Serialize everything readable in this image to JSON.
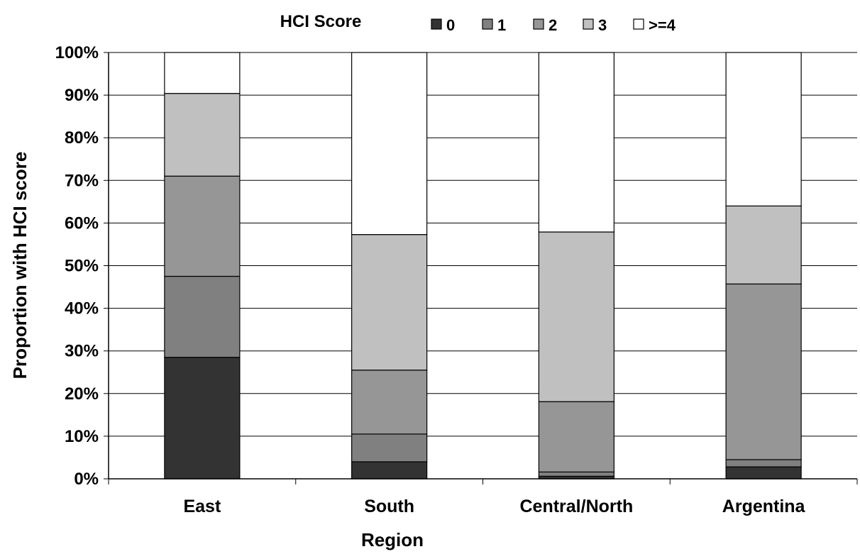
{
  "chart_data": {
    "type": "bar",
    "stacked": true,
    "normalized": true,
    "title": "",
    "legend_title": "HCI Score",
    "legend_position": "top",
    "xlabel": "Region",
    "ylabel": "Proportion with HCI score",
    "ylim": [
      0,
      100
    ],
    "y_ticks": [
      "0%",
      "10%",
      "20%",
      "30%",
      "40%",
      "50%",
      "60%",
      "70%",
      "80%",
      "90%",
      "100%"
    ],
    "gridlines": true,
    "categories": [
      "East",
      "South",
      "Central/North",
      "Argentina"
    ],
    "series": [
      {
        "name": "0",
        "color": "#333333",
        "values": [
          28.5,
          4.0,
          0.6,
          2.8
        ]
      },
      {
        "name": "1",
        "color": "#808080",
        "values": [
          19.0,
          6.5,
          1.0,
          1.7
        ]
      },
      {
        "name": "2",
        "color": "#969696",
        "values": [
          23.5,
          15.0,
          16.5,
          41.2
        ]
      },
      {
        "name": "3",
        "color": "#c0c0c0",
        "values": [
          19.4,
          31.8,
          39.8,
          18.3
        ]
      },
      {
        "name": ">=4",
        "color": "#ffffff",
        "values": [
          9.6,
          42.7,
          42.1,
          36.0
        ]
      }
    ]
  }
}
